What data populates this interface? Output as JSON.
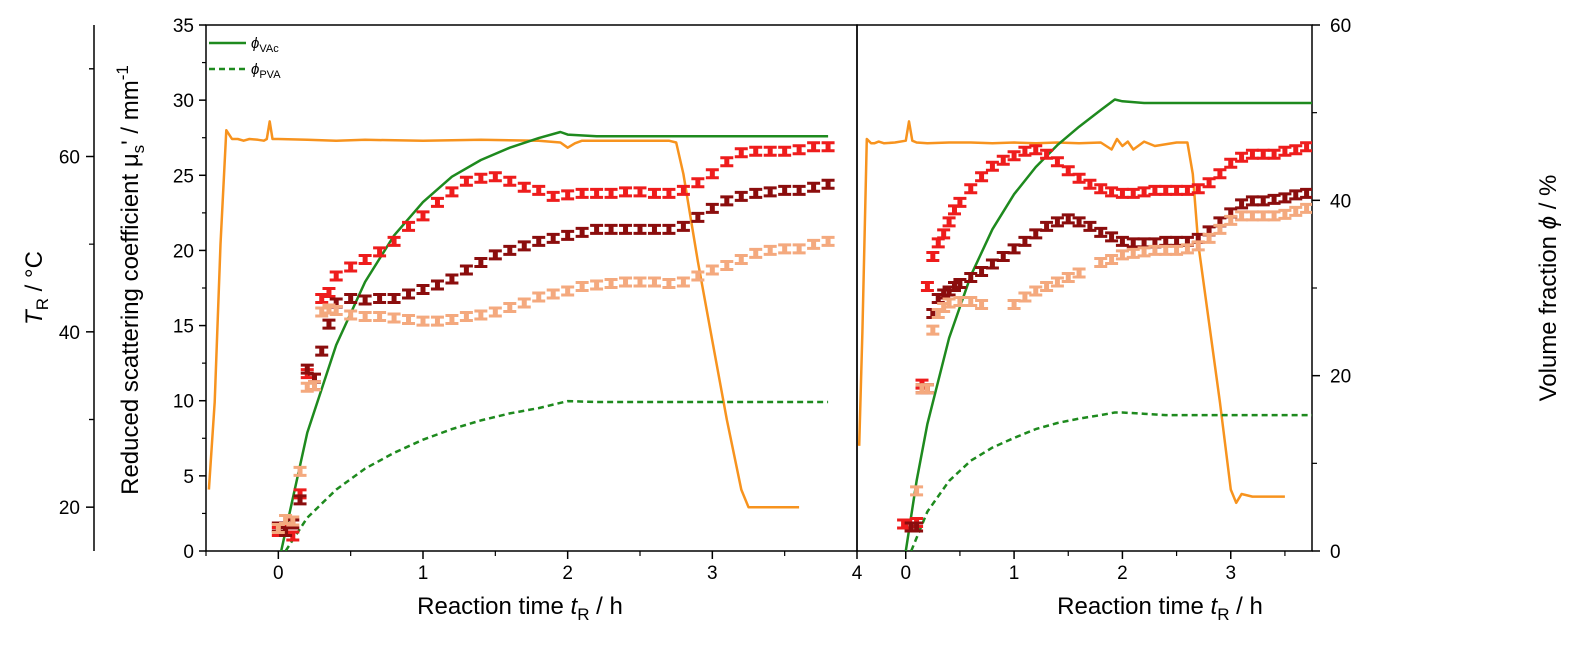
{
  "colors": {
    "temperature": "#f7931e",
    "phi_vac": "#1e8a1e",
    "phi_pva": "#1e8a1e",
    "red": "#ee1c1c",
    "darkred": "#8b0d0d",
    "lightorange": "#f4a97e"
  },
  "labels": {
    "left_axis": "T",
    "left_axis_sub": "R",
    "left_axis_unit": " / °C",
    "mu_axis": "Reduced scattering coefficient μ",
    "mu_axis_sub": "s",
    "mu_axis_unit": "' / mm",
    "mu_axis_sup": "-1",
    "right_axis": "Volume fraction ",
    "right_axis_sym": "ϕ",
    "right_axis_unit": " / %",
    "x_axis": "Reaction time ",
    "x_axis_sym": "t",
    "x_axis_sub": "R",
    "x_axis_unit": " / h",
    "legend_vac_sym": "ϕ",
    "legend_vac_sub": "VAc",
    "legend_pva_sym": "ϕ",
    "legend_pva_sub": "PVA"
  },
  "chart_data": [
    {
      "type": "line",
      "panel": "left",
      "x_range": [
        -0.5,
        4.0
      ],
      "x_ticks": [
        "0",
        "1",
        "2",
        "3",
        "4"
      ],
      "mu_range": [
        0,
        35
      ],
      "mu_ticks": [
        "0",
        "5",
        "10",
        "15",
        "20",
        "25",
        "30",
        "35"
      ],
      "temp_range": [
        15,
        75
      ],
      "temp_ticks": [
        "20",
        "40",
        "60"
      ],
      "series": [
        {
          "name": "T_R",
          "axis": "temp",
          "style": "solid",
          "x": [
            -0.48,
            -0.44,
            -0.4,
            -0.36,
            -0.32,
            -0.28,
            -0.24,
            -0.2,
            -0.14,
            -0.1,
            -0.08,
            -0.06,
            -0.04,
            0,
            0.2,
            0.4,
            0.6,
            1.0,
            1.4,
            1.8,
            1.95,
            2.0,
            2.05,
            2.1,
            2.4,
            2.6,
            2.7,
            2.75,
            2.8,
            2.9,
            3.0,
            3.1,
            3.2,
            3.25,
            3.3,
            3.4,
            3.6
          ],
          "y": [
            22,
            32,
            50,
            63,
            62,
            62,
            61.8,
            62,
            61.9,
            61.8,
            62,
            64,
            62,
            62,
            61.9,
            61.8,
            61.9,
            61.8,
            61.9,
            61.8,
            61.6,
            61.0,
            61.5,
            61.8,
            61.8,
            61.8,
            61.8,
            61.6,
            58,
            48,
            39,
            30,
            22,
            20,
            20,
            20,
            20
          ]
        },
        {
          "name": "ϕVAc",
          "axis": "phi",
          "style": "solid",
          "x": [
            0.02,
            0.2,
            0.4,
            0.6,
            0.8,
            1.0,
            1.2,
            1.4,
            1.6,
            1.8,
            1.95,
            2.0,
            2.2,
            2.6,
            3.0,
            3.4,
            3.8
          ],
          "y": [
            0,
            13.5,
            23.5,
            30.7,
            36,
            39.8,
            42.7,
            44.6,
            46.0,
            47.1,
            47.8,
            47.5,
            47.3,
            47.3,
            47.3,
            47.3,
            47.3
          ]
        },
        {
          "name": "ϕPVA",
          "axis": "phi",
          "style": "dashed",
          "x": [
            0.05,
            0.2,
            0.4,
            0.6,
            0.8,
            1.0,
            1.2,
            1.4,
            1.6,
            1.8,
            2.0,
            2.2,
            2.6,
            3.0,
            3.4,
            3.8
          ],
          "y": [
            0,
            3.8,
            7.0,
            9.4,
            11.2,
            12.7,
            13.9,
            14.9,
            15.7,
            16.3,
            17.1,
            17.0,
            17.0,
            17.0,
            17.0,
            17.0
          ]
        },
        {
          "name": "μs' (red)",
          "axis": "mu",
          "style": "errorbar",
          "marker": "red",
          "x": [
            0.0,
            0.05,
            0.1,
            0.15,
            0.2,
            0.25,
            0.3,
            0.35,
            0.4,
            0.5,
            0.6,
            0.7,
            0.8,
            0.9,
            1.0,
            1.1,
            1.2,
            1.3,
            1.4,
            1.5,
            1.6,
            1.7,
            1.8,
            1.9,
            2.0,
            2.1,
            2.2,
            2.3,
            2.4,
            2.5,
            2.6,
            2.7,
            2.8,
            2.9,
            3.0,
            3.1,
            3.2,
            3.3,
            3.4,
            3.5,
            3.6,
            3.7,
            3.8
          ],
          "y": [
            1.3,
            1.5,
            1.0,
            3.8,
            11.8,
            11.0,
            16.8,
            17.2,
            18.3,
            18.9,
            19.4,
            19.9,
            20.6,
            21.6,
            22.3,
            23.2,
            23.9,
            24.6,
            24.8,
            24.9,
            24.6,
            24.2,
            24.0,
            23.6,
            23.7,
            23.8,
            23.8,
            23.8,
            23.9,
            23.9,
            23.8,
            23.8,
            24.0,
            24.5,
            25.1,
            25.9,
            26.5,
            26.6,
            26.6,
            26.6,
            26.7,
            26.9,
            26.9
          ]
        },
        {
          "name": "μs' (dark red)",
          "axis": "mu",
          "style": "errorbar",
          "marker": "darkred",
          "x": [
            0.0,
            0.05,
            0.1,
            0.15,
            0.2,
            0.25,
            0.3,
            0.35,
            0.4,
            0.5,
            0.6,
            0.7,
            0.8,
            0.9,
            1.0,
            1.1,
            1.2,
            1.3,
            1.4,
            1.5,
            1.6,
            1.7,
            1.8,
            1.9,
            2.0,
            2.1,
            2.2,
            2.3,
            2.4,
            2.5,
            2.6,
            2.7,
            2.8,
            2.9,
            3.0,
            3.1,
            3.2,
            3.3,
            3.4,
            3.5,
            3.6,
            3.7,
            3.8
          ],
          "y": [
            1.6,
            1.3,
            1.8,
            3.4,
            12.1,
            11.5,
            13.3,
            15.1,
            16.5,
            16.8,
            16.7,
            16.8,
            16.8,
            17.1,
            17.4,
            17.7,
            18.1,
            18.7,
            19.2,
            19.7,
            20.0,
            20.3,
            20.6,
            20.8,
            21.0,
            21.2,
            21.4,
            21.4,
            21.4,
            21.4,
            21.4,
            21.4,
            21.6,
            22.2,
            22.8,
            23.3,
            23.6,
            23.8,
            23.9,
            24.0,
            24.0,
            24.2,
            24.4
          ]
        },
        {
          "name": "μs' (light orange)",
          "axis": "mu",
          "style": "errorbar",
          "marker": "lightorange",
          "x": [
            0.0,
            0.05,
            0.1,
            0.15,
            0.2,
            0.25,
            0.3,
            0.35,
            0.4,
            0.5,
            0.6,
            0.7,
            0.8,
            0.9,
            1.0,
            1.1,
            1.2,
            1.3,
            1.4,
            1.5,
            1.6,
            1.7,
            1.8,
            1.9,
            2.0,
            2.1,
            2.2,
            2.3,
            2.4,
            2.5,
            2.6,
            2.7,
            2.8,
            2.9,
            3.0,
            3.1,
            3.2,
            3.3,
            3.4,
            3.5,
            3.6,
            3.7,
            3.8
          ],
          "y": [
            1.5,
            2.1,
            2.0,
            5.3,
            10.9,
            11.0,
            15.9,
            16.1,
            16.0,
            15.7,
            15.6,
            15.6,
            15.5,
            15.4,
            15.3,
            15.3,
            15.4,
            15.6,
            15.7,
            15.9,
            16.2,
            16.5,
            16.9,
            17.1,
            17.3,
            17.6,
            17.7,
            17.8,
            17.9,
            17.9,
            17.9,
            17.8,
            17.9,
            18.3,
            18.7,
            19.0,
            19.4,
            19.8,
            20.0,
            20.1,
            20.1,
            20.4,
            20.6
          ]
        }
      ]
    },
    {
      "type": "line",
      "panel": "right",
      "x_range": [
        -0.45,
        3.75
      ],
      "x_ticks": [
        "0",
        "1",
        "2",
        "3"
      ],
      "phi_range": [
        0,
        60
      ],
      "phi_ticks": [
        "0",
        "20",
        "40",
        "60"
      ],
      "series": [
        {
          "name": "T_R",
          "axis": "temp",
          "style": "solid",
          "x": [
            -0.43,
            -0.4,
            -0.36,
            -0.32,
            -0.29,
            -0.25,
            -0.2,
            -0.1,
            0.0,
            0.03,
            0.06,
            0.1,
            0.2,
            0.4,
            0.6,
            0.8,
            1.0,
            1.2,
            1.4,
            1.6,
            1.8,
            1.9,
            1.95,
            2.0,
            2.05,
            2.1,
            2.2,
            2.3,
            2.5,
            2.6,
            2.65,
            2.7,
            2.8,
            2.9,
            3.0,
            3.05,
            3.1,
            3.2,
            3.4,
            3.5
          ],
          "y": [
            27,
            40,
            62,
            61.5,
            61.5,
            61.7,
            61.5,
            61.6,
            61.8,
            64,
            61.8,
            61.6,
            61.5,
            61.6,
            61.6,
            61.5,
            61.6,
            61.5,
            61.6,
            61.5,
            61.6,
            60.8,
            62,
            61.2,
            61.7,
            60.8,
            61.7,
            61.2,
            61.6,
            61.6,
            58,
            50,
            41,
            32,
            22,
            20.5,
            21.5,
            21.2,
            21.2,
            21.2
          ]
        },
        {
          "name": "ϕVAc",
          "axis": "phi",
          "style": "solid",
          "x": [
            0.0,
            0.1,
            0.2,
            0.4,
            0.6,
            0.8,
            1.0,
            1.2,
            1.4,
            1.6,
            1.8,
            1.93,
            2.0,
            2.2,
            2.6,
            3.0,
            3.4,
            3.75
          ],
          "y": [
            0,
            8,
            14.5,
            24.3,
            31.4,
            36.7,
            40.7,
            43.8,
            46.3,
            48.4,
            50.3,
            51.5,
            51.3,
            51.1,
            51.1,
            51.1,
            51.1,
            51.1
          ]
        },
        {
          "name": "ϕPVA",
          "axis": "phi",
          "style": "dashed",
          "x": [
            0.05,
            0.2,
            0.4,
            0.6,
            0.8,
            1.0,
            1.2,
            1.4,
            1.6,
            1.8,
            1.93,
            2.0,
            2.4,
            2.8,
            3.2,
            3.6,
            3.75
          ],
          "y": [
            0,
            4.5,
            8.0,
            10.3,
            11.8,
            12.9,
            13.9,
            14.6,
            15.1,
            15.5,
            15.8,
            15.8,
            15.5,
            15.5,
            15.5,
            15.5,
            15.5
          ]
        },
        {
          "name": "μs' (red)",
          "axis": "mu",
          "style": "errorbar",
          "marker": "red",
          "x": [
            -0.02,
            0.0,
            0.05,
            0.1,
            0.15,
            0.2,
            0.25,
            0.3,
            0.35,
            0.4,
            0.45,
            0.5,
            0.6,
            0.7,
            0.8,
            0.9,
            1.0,
            1.1,
            1.2,
            1.3,
            1.4,
            1.5,
            1.6,
            1.7,
            1.8,
            1.9,
            2.0,
            2.1,
            2.2,
            2.3,
            2.4,
            2.5,
            2.6,
            2.7,
            2.8,
            2.9,
            3.0,
            3.1,
            3.2,
            3.3,
            3.4,
            3.5,
            3.6,
            3.7
          ],
          "y": [
            1.8,
            1.8,
            1.6,
            1.9,
            11.1,
            17.6,
            19.6,
            20.5,
            21.1,
            21.9,
            22.7,
            23.2,
            24.1,
            24.9,
            25.6,
            26.0,
            26.3,
            26.6,
            26.7,
            26.4,
            25.9,
            25.3,
            24.8,
            24.4,
            24.1,
            23.9,
            23.8,
            23.8,
            23.9,
            24.0,
            24.0,
            24.0,
            24.0,
            24.1,
            24.5,
            25.1,
            25.8,
            26.2,
            26.4,
            26.4,
            26.4,
            26.6,
            26.7,
            26.9
          ]
        },
        {
          "name": "μs' (dark red)",
          "axis": "mu",
          "style": "errorbar",
          "marker": "darkred",
          "x": [
            0.05,
            0.1,
            0.15,
            0.2,
            0.25,
            0.3,
            0.35,
            0.4,
            0.45,
            0.5,
            0.6,
            0.7,
            0.8,
            0.9,
            1.0,
            1.1,
            1.2,
            1.3,
            1.4,
            1.5,
            1.6,
            1.7,
            1.8,
            1.9,
            2.0,
            2.1,
            2.2,
            2.3,
            2.4,
            2.5,
            2.6,
            2.7,
            2.8,
            2.9,
            3.0,
            3.1,
            3.2,
            3.3,
            3.4,
            3.5,
            3.6,
            3.7
          ],
          "y": [
            1.6,
            1.6,
            10.8,
            10.8,
            15.8,
            16.8,
            17.1,
            17.3,
            17.6,
            17.8,
            18.2,
            18.6,
            19.1,
            19.6,
            20.1,
            20.6,
            21.1,
            21.6,
            21.9,
            22.1,
            21.9,
            21.6,
            21.2,
            20.9,
            20.6,
            20.5,
            20.5,
            20.5,
            20.6,
            20.6,
            20.6,
            20.8,
            21.3,
            21.9,
            22.5,
            23.1,
            23.3,
            23.3,
            23.4,
            23.5,
            23.7,
            23.8
          ]
        },
        {
          "name": "μs' (light orange)",
          "axis": "mu",
          "style": "errorbar",
          "marker": "lightorange",
          "x": [
            0.1,
            0.15,
            0.2,
            0.25,
            0.3,
            0.35,
            0.4,
            0.5,
            0.6,
            0.7,
            1.0,
            1.1,
            1.2,
            1.3,
            1.4,
            1.5,
            1.6,
            1.8,
            1.9,
            2.0,
            2.1,
            2.2,
            2.3,
            2.4,
            2.5,
            2.6,
            2.7,
            2.8,
            2.9,
            3.0,
            3.1,
            3.2,
            3.3,
            3.4,
            3.5,
            3.6,
            3.7
          ],
          "y": [
            4.0,
            10.8,
            10.8,
            14.7,
            15.8,
            16.2,
            16.5,
            16.6,
            16.6,
            16.4,
            16.4,
            16.9,
            17.3,
            17.6,
            17.9,
            18.2,
            18.5,
            19.2,
            19.4,
            19.7,
            19.8,
            19.9,
            20.0,
            20.0,
            20.0,
            20.1,
            20.3,
            20.8,
            21.4,
            22.0,
            22.3,
            22.3,
            22.3,
            22.3,
            22.4,
            22.6,
            22.8
          ]
        }
      ]
    }
  ]
}
